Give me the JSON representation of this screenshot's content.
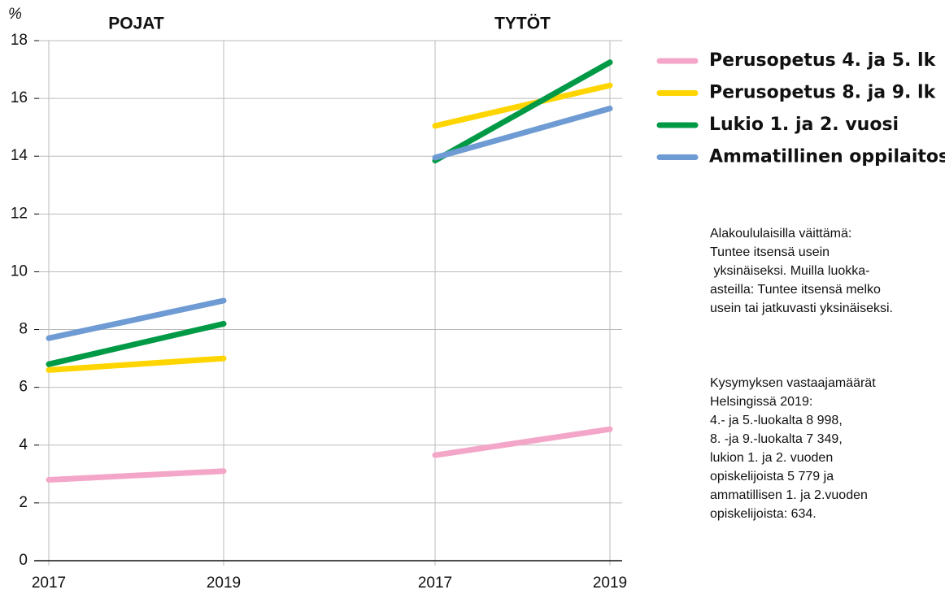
{
  "chart_data": {
    "type": "line",
    "y_label": "%",
    "ylim": [
      0,
      18
    ],
    "yticks": [
      0,
      2,
      4,
      6,
      8,
      10,
      12,
      14,
      16,
      18
    ],
    "grid": true,
    "panels": [
      {
        "title": "POJAT",
        "categories": [
          "2017",
          "2019"
        ]
      },
      {
        "title": "TYTÖT",
        "categories": [
          "2017",
          "2019"
        ]
      }
    ],
    "series": [
      {
        "name": "Perusopetus 4. ja 5. lk",
        "color": "#f4a6c8",
        "values": [
          [
            2.8,
            3.1
          ],
          [
            3.65,
            4.55
          ]
        ]
      },
      {
        "name": "Perusopetus 8. ja 9. lk",
        "color": "#ffd500",
        "values": [
          [
            6.6,
            7.0
          ],
          [
            15.05,
            16.45
          ]
        ]
      },
      {
        "name": "Lukio 1. ja 2. vuosi",
        "color": "#009a46",
        "values": [
          [
            6.8,
            8.2
          ],
          [
            13.85,
            17.25
          ]
        ]
      },
      {
        "name": "Ammatillinen oppilaitos",
        "color": "#6e9bd3",
        "values": [
          [
            7.7,
            9.0
          ],
          [
            13.95,
            15.65
          ]
        ]
      }
    ],
    "notes": [
      [
        "Alakoululaisilla väittämä:",
        "Tuntee itsensä usein",
        " yksinäiseksi. Muilla luokka-",
        "asteilla: Tuntee itsensä melko",
        "usein tai jatkuvasti yksinäiseksi."
      ],
      [
        "Kysymyksen vastaajamäärät",
        "Helsingissä 2019:",
        "4.- ja 5.-luokalta 8 998,",
        "8. -ja 9.-luokalta 7 349,",
        "lukion 1. ja 2. vuoden",
        "opiskelijoista 5 779 ja",
        "ammatillisen 1. ja 2.vuoden",
        "opiskelijoista: 634."
      ]
    ]
  }
}
